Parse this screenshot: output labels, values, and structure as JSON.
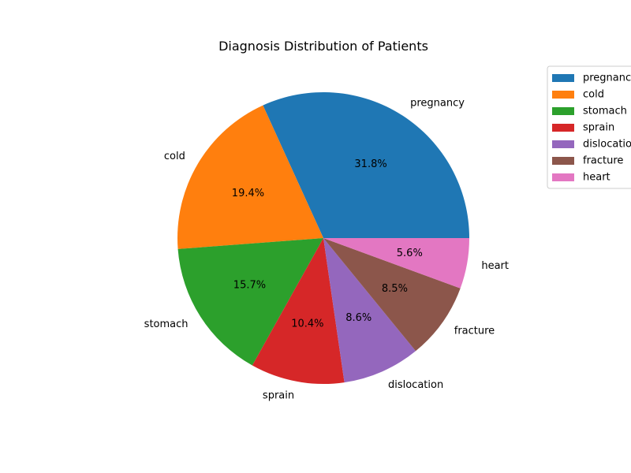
{
  "chart_data": {
    "type": "pie",
    "title": "Diagnosis Distribution of Patients",
    "categories": [
      "pregnancy",
      "cold",
      "stomach",
      "sprain",
      "dislocation",
      "fracture",
      "heart"
    ],
    "values": [
      31.8,
      19.4,
      15.7,
      10.4,
      8.6,
      8.5,
      5.6
    ],
    "value_labels": [
      "31.8%",
      "19.4%",
      "15.7%",
      "10.4%",
      "8.6%",
      "8.5%",
      "5.6%"
    ],
    "colors": [
      "#1f77b4",
      "#ff7f0e",
      "#2ca02c",
      "#d62728",
      "#9467bd",
      "#8c564b",
      "#e377c2"
    ],
    "start_angle_deg": 0,
    "direction": "counterclockwise",
    "legend": {
      "placement": "upper-right-outside",
      "entries": [
        "pregnancy",
        "cold",
        "stomach",
        "sprain",
        "dislocation",
        "fracture",
        "heart"
      ]
    }
  }
}
